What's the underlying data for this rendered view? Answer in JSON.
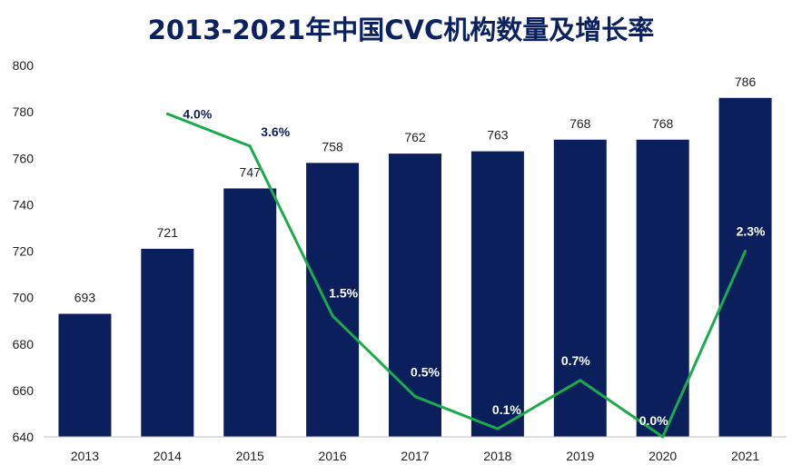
{
  "chart_data": {
    "type": "bar",
    "title": "2013-2021年中国CVC机构数量及增长率",
    "categories": [
      "2013",
      "2014",
      "2015",
      "2016",
      "2017",
      "2018",
      "2019",
      "2020",
      "2021"
    ],
    "series": [
      {
        "name": "CVC机构数量",
        "type": "bar",
        "values": [
          693,
          721,
          747,
          758,
          762,
          763,
          768,
          768,
          786
        ],
        "labels": [
          "693",
          "721",
          "747",
          "758",
          "762",
          "763",
          "768",
          "768",
          "786"
        ],
        "color": "#0b1f5c"
      },
      {
        "name": "增长率",
        "type": "line",
        "values": [
          null,
          4.0,
          3.6,
          1.5,
          0.5,
          0.1,
          0.7,
          0.0,
          2.3
        ],
        "labels": [
          "",
          "4.0%",
          "3.6%",
          "1.5%",
          "0.5%",
          "0.1%",
          "0.7%",
          "0.0%",
          "2.3%"
        ],
        "color": "#1aab4b"
      }
    ],
    "y_axis": {
      "ylim": [
        640,
        800
      ],
      "ticks": [
        "640",
        "660",
        "680",
        "700",
        "720",
        "740",
        "760",
        "780",
        "800"
      ]
    },
    "secondary_axis": {
      "ylim": [
        0,
        4.6
      ],
      "visible": false
    },
    "grid": false,
    "xlabel": "",
    "ylabel": ""
  }
}
